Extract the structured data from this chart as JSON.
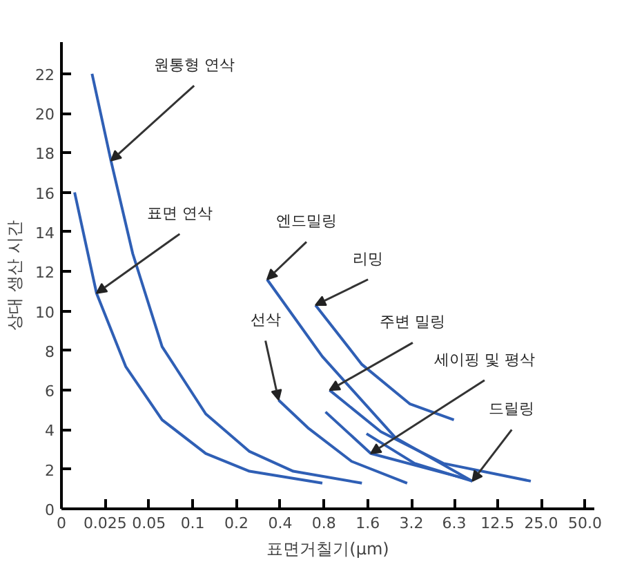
{
  "chart_data": {
    "type": "line",
    "xlabel": "표면거칠기(μm)",
    "ylabel": "상대 생산 시간",
    "log": "x",
    "xlim": [
      0.0125,
      58
    ],
    "ylim": [
      0,
      23.6
    ],
    "xticks": [
      {
        "value": 0.0125,
        "label": "0"
      },
      0.025,
      0.05,
      0.1,
      0.2,
      0.4,
      0.8,
      1.6,
      3.2,
      6.3,
      12.5,
      {
        "value": 25,
        "label": "25.0"
      },
      {
        "value": 50,
        "label": "50.0"
      }
    ],
    "yticks": [
      0,
      2,
      4,
      6,
      8,
      10,
      12,
      14,
      16,
      18,
      20,
      22
    ],
    "grid": false,
    "marker": "none",
    "line_style": "solid",
    "series": [
      {
        "color": "#2f5fb5",
        "x": [
          0.0203,
          0.0274,
          0.0387,
          0.0616,
          0.123,
          0.246,
          0.492,
          1.46
        ],
        "values": [
          22.0,
          17.6,
          12.9,
          8.2,
          4.8,
          2.9,
          1.9,
          1.3
        ]
      },
      {
        "color": "#2f5fb5",
        "x": [
          0.0154,
          0.0218,
          0.0346,
          0.0616,
          0.123,
          0.246,
          0.78
        ],
        "values": [
          16.0,
          10.9,
          7.2,
          4.5,
          2.8,
          1.9,
          1.3
        ]
      },
      {
        "color": "#2f5fb5",
        "x": [
          0.39,
          0.62,
          1.24,
          2.99
        ],
        "values": [
          5.5,
          4.1,
          2.4,
          1.3
        ]
      },
      {
        "color": "#2f5fb5",
        "x": [
          0.325,
          0.78,
          2.48,
          8.4
        ],
        "values": [
          11.6,
          7.7,
          3.6,
          1.4
        ]
      },
      {
        "color": "#2f5fb5",
        "x": [
          0.7,
          1.46,
          3.13,
          6.27
        ],
        "values": [
          10.3,
          7.3,
          5.3,
          4.5
        ]
      },
      {
        "color": "#2f5fb5",
        "x": [
          0.875,
          1.97,
          5.3,
          21.2
        ],
        "values": [
          6.0,
          3.9,
          2.3,
          1.4
        ]
      },
      {
        "color": "#2f5fb5",
        "x": [
          0.82,
          1.68,
          7.35
        ],
        "values": [
          4.9,
          2.8,
          1.55
        ]
      },
      {
        "color": "#2f5fb5",
        "x": [
          1.57,
          3.36,
          8.4
        ],
        "values": [
          3.8,
          2.3,
          1.4
        ]
      }
    ],
    "annotations": [
      {
        "text": "원통형 연삭",
        "x": 0.0274,
        "y": 17.6
      },
      {
        "text": "표면 연삭",
        "x": 0.0218,
        "y": 10.9
      },
      {
        "text": "엔드밀링",
        "x": 0.325,
        "y": 11.6
      },
      {
        "text": "리밍",
        "x": 0.7,
        "y": 10.3
      },
      {
        "text": "주변 밀링",
        "x": 0.875,
        "y": 6.0
      },
      {
        "text": "선삭",
        "x": 0.39,
        "y": 5.5
      },
      {
        "text": "세이핑 및 평삭",
        "x": 1.68,
        "y": 2.8
      },
      {
        "text": "드릴링",
        "x": 8.4,
        "y": 1.4
      }
    ]
  }
}
